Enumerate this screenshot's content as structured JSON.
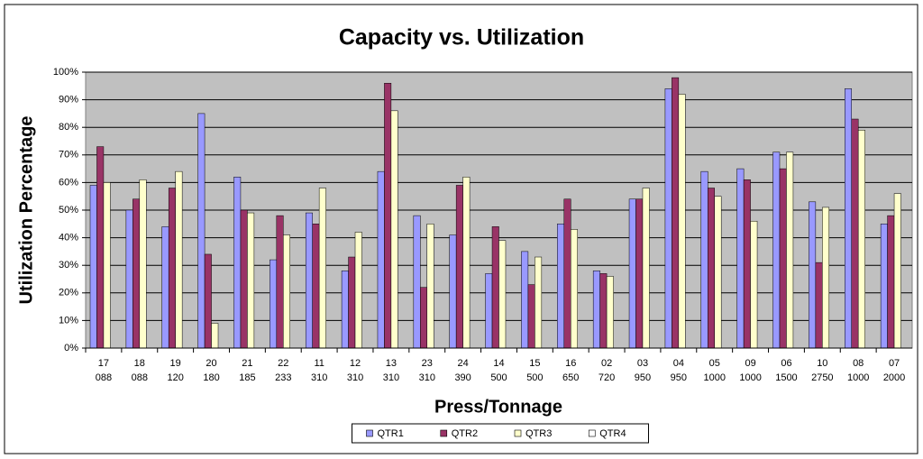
{
  "chart_data": {
    "type": "bar",
    "title": "Capacity vs. Utilization",
    "x_label": "Press/Tonnage",
    "y_label": "Utilization Percentage",
    "categories": [
      [
        "17",
        "088"
      ],
      [
        "18",
        "088"
      ],
      [
        "19",
        "120"
      ],
      [
        "20",
        "180"
      ],
      [
        "21",
        "185"
      ],
      [
        "22",
        "233"
      ],
      [
        "11",
        "310"
      ],
      [
        "12",
        "310"
      ],
      [
        "13",
        "310"
      ],
      [
        "23",
        "310"
      ],
      [
        "24",
        "390"
      ],
      [
        "14",
        "500"
      ],
      [
        "15",
        "500"
      ],
      [
        "16",
        "650"
      ],
      [
        "02",
        "720"
      ],
      [
        "03",
        "950"
      ],
      [
        "04",
        "950"
      ],
      [
        "05",
        "1000"
      ],
      [
        "09",
        "1000"
      ],
      [
        "06",
        "1500"
      ],
      [
        "10",
        "2750"
      ],
      [
        "08",
        "1000"
      ],
      [
        "07",
        "2000"
      ]
    ],
    "series": [
      {
        "name": "QTR1",
        "color": "#9999ff",
        "values": [
          59,
          50,
          44,
          85,
          62,
          32,
          49,
          28,
          64,
          48,
          41,
          27,
          35,
          45,
          28,
          54,
          94,
          64,
          65,
          71,
          53,
          94,
          45
        ]
      },
      {
        "name": "QTR2",
        "color": "#993366",
        "values": [
          73,
          54,
          58,
          34,
          50,
          48,
          45,
          33,
          96,
          22,
          59,
          44,
          23,
          54,
          27,
          54,
          98,
          58,
          61,
          65,
          31,
          83,
          48
        ]
      },
      {
        "name": "QTR3",
        "color": "#ffffcc",
        "values": [
          60,
          61,
          64,
          9,
          49,
          41,
          58,
          42,
          86,
          45,
          62,
          39,
          33,
          43,
          26,
          58,
          92,
          55,
          46,
          71,
          51,
          79,
          56
        ]
      },
      {
        "name": "QTR4",
        "color": "#ffffff",
        "values": [
          null,
          null,
          null,
          null,
          null,
          null,
          null,
          null,
          null,
          null,
          null,
          null,
          null,
          null,
          null,
          null,
          null,
          null,
          null,
          null,
          null,
          null,
          null
        ]
      }
    ],
    "ylim": [
      0,
      100
    ],
    "yticks": [
      {
        "value": 0,
        "label": "0%"
      },
      {
        "value": 10,
        "label": "10%"
      },
      {
        "value": 20,
        "label": "20%"
      },
      {
        "value": 30,
        "label": "30%"
      },
      {
        "value": 40,
        "label": "40%"
      },
      {
        "value": 50,
        "label": "50%"
      },
      {
        "value": 60,
        "label": "60%"
      },
      {
        "value": 70,
        "label": "70%"
      },
      {
        "value": 80,
        "label": "80%"
      },
      {
        "value": 90,
        "label": "90%"
      },
      {
        "value": 100,
        "label": "100%"
      }
    ],
    "grid": true,
    "legend": "bottom",
    "plot_background": "#c0c0c0"
  }
}
